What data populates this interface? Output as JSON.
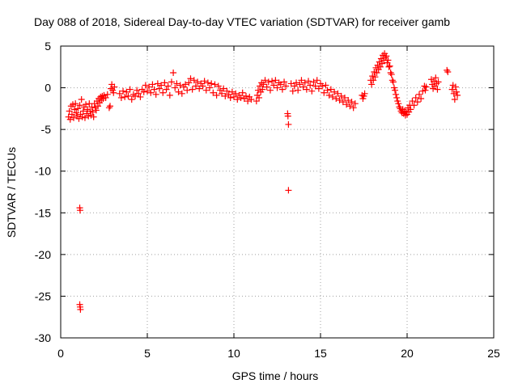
{
  "chart_data": {
    "type": "scatter",
    "title": "Day 088 of 2018, Sidereal Day-to-day VTEC variation (SDTVAR) for receiver gamb",
    "xlabel": "GPS time / hours",
    "ylabel": "SDTVAR / TECUs",
    "xlim": [
      0,
      25
    ],
    "ylim": [
      -30,
      5
    ],
    "xticks": [
      0,
      5,
      10,
      15,
      20,
      25
    ],
    "yticks": [
      -30,
      -25,
      -20,
      -15,
      -10,
      -5,
      0,
      5
    ],
    "grid": true,
    "marker": "+",
    "series": [
      {
        "name": "SDTVAR",
        "color": "#ff0000",
        "points": [
          [
            0.45,
            -3.5
          ],
          [
            0.5,
            -2.8
          ],
          [
            0.55,
            -3.8
          ],
          [
            0.6,
            -2.2
          ],
          [
            0.65,
            -3.2
          ],
          [
            0.7,
            -2.0
          ],
          [
            0.75,
            -3.6
          ],
          [
            0.8,
            -2.6
          ],
          [
            0.85,
            -1.9
          ],
          [
            0.9,
            -3.0
          ],
          [
            0.95,
            -3.4
          ],
          [
            1.0,
            -2.5
          ],
          [
            1.05,
            -3.7
          ],
          [
            1.1,
            -2.1
          ],
          [
            1.15,
            -3.2
          ],
          [
            1.2,
            -1.4
          ],
          [
            1.25,
            -3.5
          ],
          [
            1.3,
            -2.8
          ],
          [
            1.35,
            -2.3
          ],
          [
            1.4,
            -3.6
          ],
          [
            1.45,
            -2.0
          ],
          [
            1.5,
            -3.1
          ],
          [
            1.55,
            -2.6
          ],
          [
            1.6,
            -3.4
          ],
          [
            1.65,
            -1.9
          ],
          [
            1.7,
            -2.8
          ],
          [
            1.75,
            -3.3
          ],
          [
            1.8,
            -2.3
          ],
          [
            1.85,
            -2.9
          ],
          [
            1.9,
            -3.5
          ],
          [
            1.95,
            -1.9
          ],
          [
            2.0,
            -2.4
          ],
          [
            2.05,
            -2.7
          ],
          [
            2.1,
            -1.6
          ],
          [
            2.15,
            -2.2
          ],
          [
            2.2,
            -1.3
          ],
          [
            2.25,
            -1.8
          ],
          [
            2.3,
            -1.1
          ],
          [
            2.35,
            -1.5
          ],
          [
            2.4,
            -1.0
          ],
          [
            2.45,
            -1.3
          ],
          [
            2.5,
            -0.9
          ],
          [
            2.6,
            -1.2
          ],
          [
            2.7,
            -0.8
          ],
          [
            2.8,
            -2.4
          ],
          [
            2.85,
            -2.2
          ],
          [
            2.9,
            -0.1
          ],
          [
            2.95,
            0.4
          ],
          [
            3.0,
            -0.3
          ],
          [
            3.05,
            -0.6
          ],
          [
            3.1,
            0.1
          ],
          [
            3.4,
            -0.7
          ],
          [
            3.5,
            -1.2
          ],
          [
            3.6,
            -0.4
          ],
          [
            3.7,
            -1.1
          ],
          [
            3.8,
            -0.5
          ],
          [
            3.9,
            -1.0
          ],
          [
            4.0,
            -0.2
          ],
          [
            4.1,
            -1.4
          ],
          [
            4.2,
            -0.8
          ],
          [
            4.3,
            -1.0
          ],
          [
            4.4,
            -0.3
          ],
          [
            4.5,
            -0.7
          ],
          [
            4.6,
            -1.1
          ],
          [
            4.7,
            -0.2
          ],
          [
            4.8,
            -0.5
          ],
          [
            4.9,
            0.3
          ],
          [
            5.0,
            -0.4
          ],
          [
            5.1,
            0.1
          ],
          [
            5.2,
            -0.6
          ],
          [
            5.3,
            0.4
          ],
          [
            5.4,
            -0.2
          ],
          [
            5.5,
            -0.8
          ],
          [
            5.6,
            0.5
          ],
          [
            5.7,
            -0.1
          ],
          [
            5.8,
            0.3
          ],
          [
            5.9,
            -0.6
          ],
          [
            6.0,
            0.6
          ],
          [
            6.1,
            -0.2
          ],
          [
            6.2,
            0.2
          ],
          [
            6.3,
            -0.9
          ],
          [
            6.4,
            0.7
          ],
          [
            6.5,
            1.8
          ],
          [
            6.6,
            0.0
          ],
          [
            6.7,
            0.5
          ],
          [
            6.8,
            -0.5
          ],
          [
            6.9,
            0.3
          ],
          [
            7.0,
            -0.7
          ],
          [
            7.1,
            0.1
          ],
          [
            7.2,
            0.4
          ],
          [
            7.3,
            -0.3
          ],
          [
            7.4,
            0.6
          ],
          [
            7.5,
            1.1
          ],
          [
            7.6,
            -0.2
          ],
          [
            7.7,
            0.9
          ],
          [
            7.8,
            0.2
          ],
          [
            7.9,
            0.7
          ],
          [
            8.0,
            -0.1
          ],
          [
            8.1,
            0.5
          ],
          [
            8.2,
            0.2
          ],
          [
            8.3,
            0.8
          ],
          [
            8.4,
            -0.3
          ],
          [
            8.5,
            0.6
          ],
          [
            8.6,
            0.0
          ],
          [
            8.7,
            0.5
          ],
          [
            8.8,
            -0.6
          ],
          [
            8.9,
            0.4
          ],
          [
            9.0,
            -0.9
          ],
          [
            9.1,
            0.2
          ],
          [
            9.2,
            -0.3
          ],
          [
            9.3,
            -0.7
          ],
          [
            9.4,
            -0.1
          ],
          [
            9.5,
            -1.0
          ],
          [
            9.6,
            -0.4
          ],
          [
            9.7,
            -0.8
          ],
          [
            9.8,
            -1.2
          ],
          [
            9.9,
            -0.5
          ],
          [
            10.0,
            -1.1
          ],
          [
            10.1,
            -0.7
          ],
          [
            10.2,
            -1.4
          ],
          [
            10.3,
            -0.9
          ],
          [
            10.4,
            -1.2
          ],
          [
            10.5,
            -0.6
          ],
          [
            10.6,
            -1.3
          ],
          [
            10.7,
            -1.0
          ],
          [
            10.8,
            -1.6
          ],
          [
            10.9,
            -1.1
          ],
          [
            11.0,
            -1.4
          ],
          [
            11.3,
            -1.6
          ],
          [
            11.35,
            -0.9
          ],
          [
            11.4,
            -0.3
          ],
          [
            11.45,
            -1.2
          ],
          [
            11.5,
            0.2
          ],
          [
            11.55,
            -0.5
          ],
          [
            11.6,
            0.6
          ],
          [
            11.65,
            -0.2
          ],
          [
            11.7,
            0.4
          ],
          [
            11.8,
            0.9
          ],
          [
            11.9,
            0.1
          ],
          [
            12.0,
            0.7
          ],
          [
            12.1,
            -0.3
          ],
          [
            12.2,
            0.8
          ],
          [
            12.3,
            0.3
          ],
          [
            12.4,
            0.9
          ],
          [
            12.5,
            0.0
          ],
          [
            12.6,
            0.6
          ],
          [
            12.7,
            0.4
          ],
          [
            12.8,
            -0.2
          ],
          [
            12.9,
            0.7
          ],
          [
            13.0,
            0.2
          ],
          [
            13.1,
            -3.1
          ],
          [
            13.12,
            -3.4
          ],
          [
            13.15,
            -4.4
          ],
          [
            13.15,
            -12.3
          ],
          [
            13.3,
            0.5
          ],
          [
            13.4,
            -0.4
          ],
          [
            13.5,
            0.2
          ],
          [
            13.6,
            0.6
          ],
          [
            13.7,
            -0.3
          ],
          [
            13.8,
            0.4
          ],
          [
            13.9,
            0.9
          ],
          [
            14.0,
            0.1
          ],
          [
            14.1,
            0.6
          ],
          [
            14.2,
            -0.2
          ],
          [
            14.3,
            0.8
          ],
          [
            14.4,
            0.3
          ],
          [
            14.5,
            -0.4
          ],
          [
            14.6,
            0.7
          ],
          [
            14.7,
            0.2
          ],
          [
            14.8,
            0.9
          ],
          [
            14.9,
            -0.1
          ],
          [
            15.0,
            0.5
          ],
          [
            15.1,
            0.2
          ],
          [
            15.2,
            -0.6
          ],
          [
            15.3,
            0.3
          ],
          [
            15.4,
            -0.3
          ],
          [
            15.5,
            -0.9
          ],
          [
            15.6,
            -0.2
          ],
          [
            15.7,
            -1.1
          ],
          [
            15.8,
            -0.5
          ],
          [
            15.9,
            -1.3
          ],
          [
            16.0,
            -0.7
          ],
          [
            16.1,
            -1.5
          ],
          [
            16.2,
            -1.0
          ],
          [
            16.3,
            -1.7
          ],
          [
            16.4,
            -1.2
          ],
          [
            16.5,
            -2.0
          ],
          [
            16.6,
            -1.5
          ],
          [
            16.7,
            -2.2
          ],
          [
            16.8,
            -1.7
          ],
          [
            16.9,
            -2.4
          ],
          [
            17.0,
            -1.9
          ],
          [
            17.4,
            -0.9
          ],
          [
            17.45,
            -1.3
          ],
          [
            17.5,
            -1.0
          ],
          [
            17.55,
            -0.7
          ],
          [
            17.9,
            0.9
          ],
          [
            17.95,
            0.4
          ],
          [
            18.0,
            1.4
          ],
          [
            18.05,
            0.9
          ],
          [
            18.1,
            1.9
          ],
          [
            18.15,
            1.3
          ],
          [
            18.2,
            2.4
          ],
          [
            18.25,
            1.8
          ],
          [
            18.3,
            2.7
          ],
          [
            18.35,
            2.2
          ],
          [
            18.4,
            3.1
          ],
          [
            18.45,
            2.5
          ],
          [
            18.5,
            3.5
          ],
          [
            18.55,
            2.9
          ],
          [
            18.6,
            3.9
          ],
          [
            18.65,
            3.3
          ],
          [
            18.7,
            4.1
          ],
          [
            18.75,
            3.6
          ],
          [
            18.8,
            3.8
          ],
          [
            18.85,
            3.0
          ],
          [
            18.9,
            3.3
          ],
          [
            18.95,
            2.5
          ],
          [
            19.0,
            2.6
          ],
          [
            19.05,
            1.8
          ],
          [
            19.1,
            1.6
          ],
          [
            19.15,
            0.9
          ],
          [
            19.2,
            0.7
          ],
          [
            19.25,
            0.0
          ],
          [
            19.3,
            -0.3
          ],
          [
            19.35,
            -0.8
          ],
          [
            19.4,
            -1.2
          ],
          [
            19.45,
            -1.6
          ],
          [
            19.5,
            -1.9
          ],
          [
            19.55,
            -2.3
          ],
          [
            19.6,
            -2.5
          ],
          [
            19.65,
            -2.8
          ],
          [
            19.7,
            -3.0
          ],
          [
            19.75,
            -2.6
          ],
          [
            19.8,
            -3.1
          ],
          [
            19.85,
            -2.8
          ],
          [
            19.9,
            -3.3
          ],
          [
            19.95,
            -2.9
          ],
          [
            20.0,
            -3.2
          ],
          [
            20.05,
            -2.4
          ],
          [
            20.1,
            -2.9
          ],
          [
            20.15,
            -2.1
          ],
          [
            20.2,
            -2.6
          ],
          [
            20.3,
            -1.6
          ],
          [
            20.4,
            -2.1
          ],
          [
            20.5,
            -1.2
          ],
          [
            20.6,
            -1.7
          ],
          [
            20.7,
            -0.8
          ],
          [
            20.8,
            -1.3
          ],
          [
            20.9,
            -0.4
          ],
          [
            21.0,
            0.2
          ],
          [
            21.05,
            -0.3
          ],
          [
            21.1,
            0.1
          ],
          [
            21.4,
            1.0
          ],
          [
            21.45,
            0.4
          ],
          [
            21.5,
            -0.1
          ],
          [
            21.55,
            0.8
          ],
          [
            21.6,
            0.2
          ],
          [
            21.65,
            1.2
          ],
          [
            21.7,
            0.5
          ],
          [
            21.75,
            -0.2
          ],
          [
            21.8,
            0.7
          ],
          [
            22.3,
            2.1
          ],
          [
            22.35,
            1.9
          ],
          [
            22.6,
            -0.2
          ],
          [
            22.65,
            0.3
          ],
          [
            22.7,
            -0.7
          ],
          [
            22.75,
            -1.4
          ],
          [
            22.8,
            0.1
          ],
          [
            22.85,
            -0.5
          ],
          [
            22.9,
            -0.9
          ],
          [
            1.1,
            -14.4
          ],
          [
            1.12,
            -14.7
          ],
          [
            1.1,
            -26.0
          ],
          [
            1.12,
            -26.3
          ],
          [
            1.14,
            -26.6
          ]
        ]
      }
    ]
  }
}
